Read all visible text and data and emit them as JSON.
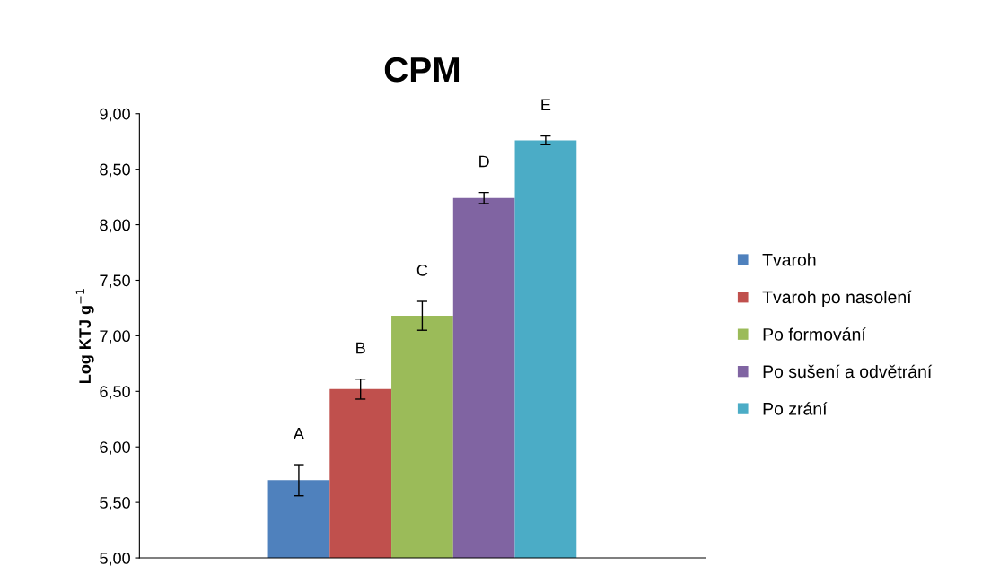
{
  "chart_data": {
    "type": "bar",
    "title": "CPM",
    "ylabel": "Log KTJ g$^{−1}$",
    "categories": [
      null
    ],
    "series": [
      {
        "name": "Tvaroh",
        "color": "#4f81bd",
        "values": [
          5.7
        ],
        "errors": [
          0.14
        ]
      },
      {
        "name": "Tvaroh po nasolení",
        "color": "#c0504d",
        "values": [
          6.52
        ],
        "errors": [
          0.09
        ]
      },
      {
        "name": "Po formování",
        "color": "#9bbb59",
        "values": [
          7.18
        ],
        "errors": [
          0.13
        ]
      },
      {
        "name": "Po sušení a odvětrání",
        "color": "#8064a2",
        "values": [
          8.24
        ],
        "errors": [
          0.05
        ]
      },
      {
        "name": "Po zrání",
        "color": "#4bacc6",
        "values": [
          8.76
        ],
        "errors": [
          0.04
        ]
      }
    ],
    "annotations": [
      "A",
      "B",
      "C",
      "D",
      "E"
    ],
    "ylim": [
      5,
      9
    ],
    "yticks": [
      {
        "value": 5,
        "label": "5,00"
      },
      {
        "value": 5.5,
        "label": "5,50"
      },
      {
        "value": 6,
        "label": "6,00"
      },
      {
        "value": 6.5,
        "label": "6,50"
      },
      {
        "value": 7,
        "label": "7,00"
      },
      {
        "value": 7.5,
        "label": "7,50"
      },
      {
        "value": 8,
        "label": "8,00"
      },
      {
        "value": 8.5,
        "label": "8,50"
      },
      {
        "value": 9,
        "label": "9,00"
      }
    ],
    "grid": false,
    "legend": "right"
  }
}
